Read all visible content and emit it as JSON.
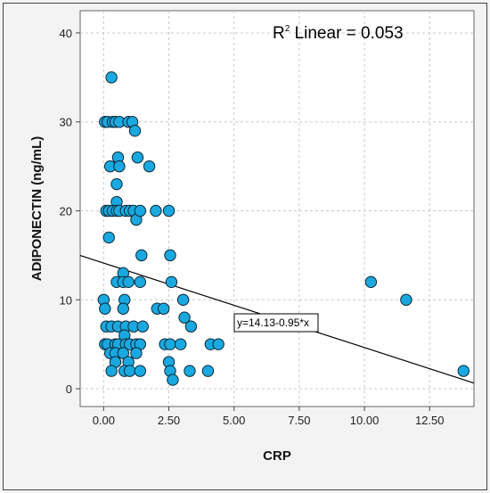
{
  "chart_data": {
    "type": "scatter",
    "xlabel": "CRP",
    "ylabel": "ADIPONECTIN (ng/mL)",
    "xlim": [
      -0.9,
      14.2
    ],
    "ylim": [
      -2,
      42.5
    ],
    "x_ticks": [
      0,
      2.5,
      5,
      7.5,
      10,
      12.5
    ],
    "x_tick_labels": [
      "0.00",
      "2.50",
      "5.00",
      "7.50",
      "10.00",
      "12.50"
    ],
    "y_ticks": [
      0,
      10,
      20,
      30,
      40
    ],
    "y_tick_labels": [
      "0",
      "10",
      "20",
      "30",
      "40"
    ],
    "grid": true,
    "annotation": "R² Linear = 0.053",
    "annotation_prefix": "R",
    "annotation_super": "2",
    "annotation_rest": " Linear = 0.053",
    "fit_label": "y=14.13-0.95*x",
    "fit": {
      "intercept": 14.13,
      "slope": -0.95
    },
    "marker_color": "#1aa8e0",
    "points": [
      [
        0.05,
        30
      ],
      [
        0.15,
        30
      ],
      [
        0.35,
        30
      ],
      [
        0.45,
        30
      ],
      [
        0.6,
        30
      ],
      [
        0.95,
        30
      ],
      [
        1.1,
        30
      ],
      [
        0.3,
        35
      ],
      [
        1.2,
        29
      ],
      [
        0.55,
        26
      ],
      [
        0.25,
        25
      ],
      [
        0.6,
        25
      ],
      [
        1.3,
        26
      ],
      [
        1.75,
        25
      ],
      [
        0.5,
        23
      ],
      [
        0.5,
        21
      ],
      [
        0.1,
        20
      ],
      [
        0.2,
        20
      ],
      [
        0.35,
        20
      ],
      [
        0.5,
        20
      ],
      [
        0.6,
        20
      ],
      [
        0.85,
        20
      ],
      [
        1.0,
        20
      ],
      [
        1.15,
        20
      ],
      [
        1.25,
        19
      ],
      [
        1.4,
        20
      ],
      [
        2.0,
        20
      ],
      [
        2.5,
        20
      ],
      [
        0.2,
        17
      ],
      [
        1.45,
        15
      ],
      [
        2.55,
        15
      ],
      [
        0.75,
        13
      ],
      [
        0.5,
        12
      ],
      [
        0.75,
        12
      ],
      [
        0.95,
        12
      ],
      [
        1.4,
        12
      ],
      [
        2.6,
        12
      ],
      [
        0.0,
        10
      ],
      [
        0.8,
        10
      ],
      [
        3.05,
        10
      ],
      [
        10.25,
        12
      ],
      [
        11.6,
        10
      ],
      [
        0.05,
        9
      ],
      [
        0.75,
        9
      ],
      [
        2.05,
        9
      ],
      [
        2.3,
        9
      ],
      [
        3.1,
        8
      ],
      [
        0.1,
        7
      ],
      [
        0.3,
        7
      ],
      [
        0.55,
        7
      ],
      [
        0.85,
        7
      ],
      [
        1.15,
        7
      ],
      [
        1.5,
        7
      ],
      [
        3.35,
        7
      ],
      [
        0.8,
        6
      ],
      [
        0.05,
        5
      ],
      [
        0.15,
        5
      ],
      [
        0.45,
        5
      ],
      [
        0.55,
        5
      ],
      [
        0.85,
        5
      ],
      [
        1.0,
        5
      ],
      [
        1.25,
        5
      ],
      [
        1.4,
        5
      ],
      [
        2.35,
        5
      ],
      [
        2.55,
        5
      ],
      [
        2.95,
        5
      ],
      [
        4.1,
        5
      ],
      [
        4.4,
        5
      ],
      [
        0.25,
        4
      ],
      [
        0.45,
        4
      ],
      [
        0.75,
        4
      ],
      [
        1.25,
        4
      ],
      [
        0.45,
        3
      ],
      [
        0.95,
        3
      ],
      [
        2.5,
        3
      ],
      [
        0.3,
        2
      ],
      [
        0.8,
        2
      ],
      [
        1.0,
        2
      ],
      [
        1.4,
        2
      ],
      [
        2.55,
        2
      ],
      [
        3.3,
        2
      ],
      [
        4.0,
        2
      ],
      [
        2.65,
        1
      ],
      [
        13.8,
        2
      ]
    ]
  }
}
